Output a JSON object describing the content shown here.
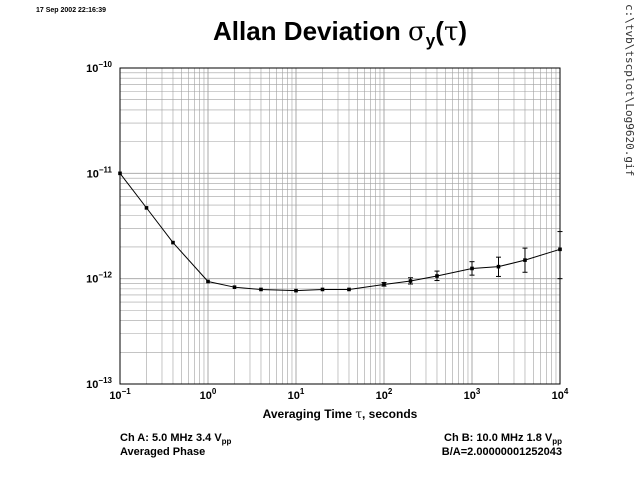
{
  "timestamp": "17 Sep 2002 22:16:39",
  "side_path": "c:\\tvb\\tscplot\\Log9620.gif",
  "title": {
    "main": "Allan Deviation ",
    "sigma": "σ",
    "subscript": "y",
    "open": "(",
    "tau": "τ",
    "close": ")"
  },
  "footer": {
    "ch_a_prefix": "Ch A: 5.0 MHz 3.4 V",
    "ch_a_sub": "pp",
    "mode": "Averaged Phase",
    "ch_b_prefix": "Ch B: 10.0 MHz 1.8 V",
    "ch_b_sub": "pp",
    "ratio": "B/A=2.00000001252043"
  },
  "chart_data": {
    "type": "line",
    "title": "Allan Deviation σy(τ)",
    "xlabel_prefix": "Averaging Time ",
    "xlabel_tau": "τ",
    "xlabel_suffix": ", seconds",
    "x_scale": "log",
    "y_scale": "log",
    "xlim": [
      0.1,
      10000
    ],
    "ylim": [
      1e-13,
      1e-10
    ],
    "grid": true,
    "x_ticks": [
      {
        "value": 0.1,
        "base": "10",
        "exp": "−1"
      },
      {
        "value": 1,
        "base": "10",
        "exp": "0"
      },
      {
        "value": 10,
        "base": "10",
        "exp": "1"
      },
      {
        "value": 100,
        "base": "10",
        "exp": "2"
      },
      {
        "value": 1000,
        "base": "10",
        "exp": "3"
      },
      {
        "value": 10000,
        "base": "10",
        "exp": "4"
      }
    ],
    "y_ticks": [
      {
        "value": 1e-10,
        "base": "10",
        "exp": "−10"
      },
      {
        "value": 1e-11,
        "base": "10",
        "exp": "−11"
      },
      {
        "value": 1e-12,
        "base": "10",
        "exp": "−12"
      },
      {
        "value": 1e-13,
        "base": "10",
        "exp": "−13"
      }
    ],
    "series": [
      {
        "x": [
          0.1,
          0.2,
          0.4,
          1,
          2,
          4,
          10,
          20,
          40,
          100,
          200,
          400,
          1000,
          2000,
          4000,
          10000
        ],
        "y": [
          1e-11,
          4.7e-12,
          2.2e-12,
          9.4e-13,
          8.3e-13,
          7.9e-13,
          7.7e-13,
          7.9e-13,
          7.9e-13,
          8.8e-13,
          9.5e-13,
          1.06e-12,
          1.25e-12,
          1.3e-12,
          1.5e-12,
          1.9e-12
        ],
        "err_low": [
          1e-11,
          4.7e-12,
          2.2e-12,
          9.4e-13,
          8.3e-13,
          7.9e-13,
          7.7e-13,
          7.9e-13,
          7.9e-13,
          8.5e-13,
          8.9e-13,
          9.6e-13,
          1.08e-12,
          1.05e-12,
          1.15e-12,
          1e-12
        ],
        "err_high": [
          1e-11,
          4.7e-12,
          2.2e-12,
          9.4e-13,
          8.3e-13,
          7.9e-13,
          7.7e-13,
          7.9e-13,
          7.9e-13,
          9.2e-13,
          1.02e-12,
          1.18e-12,
          1.45e-12,
          1.6e-12,
          1.95e-12,
          2.8e-12
        ]
      }
    ],
    "colors": {
      "line": "#000000",
      "grid": "#a0a0a0",
      "frame": "#000000"
    }
  }
}
